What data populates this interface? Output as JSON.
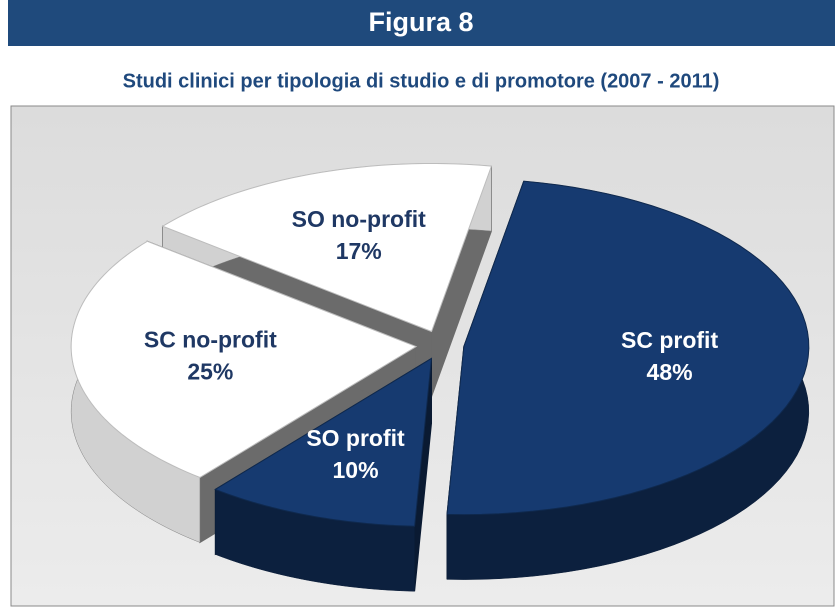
{
  "chart_data": {
    "type": "pie",
    "title": "Figura 8",
    "subtitle": "Studi clinici per tipologia di studio e di promotore (2007 - 2011)",
    "categories": [
      "SC profit",
      "SO profit",
      "SC no-profit",
      "SO no-profit"
    ],
    "values": [
      48,
      10,
      25,
      17
    ],
    "value_labels": [
      "48%",
      "10%",
      "25%",
      "17%"
    ],
    "colors": [
      "#163a70",
      "#163a70",
      "#ffffff",
      "#ffffff"
    ]
  }
}
